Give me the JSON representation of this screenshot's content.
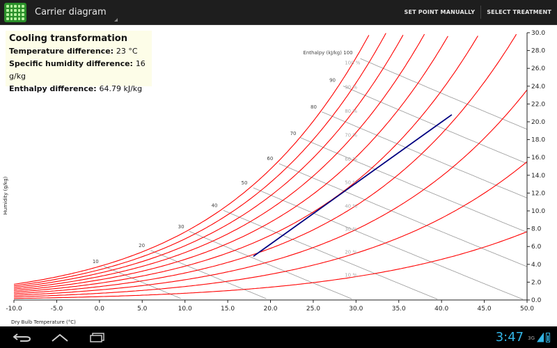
{
  "app": {
    "title": "Carrier diagram",
    "icon": "grid-app-icon"
  },
  "actions": [
    {
      "label": "SET POINT MANUALLY"
    },
    {
      "label": "SELECT TREATMENT"
    }
  ],
  "info": {
    "title": "Cooling transformation",
    "rows": [
      {
        "label": "Temperature difference:",
        "value": "23 °C"
      },
      {
        "label": "Specific humidity difference:",
        "value": "16 g/kg"
      },
      {
        "label": "Enthalpy difference:",
        "value": "64.79 kJ/kg"
      }
    ]
  },
  "chart_data": {
    "type": "line",
    "xlabel": "Dry Bulb Temperature (°C)",
    "ylabel": "Humidity (g/kg)",
    "x_ticks": [
      "-10.0",
      "-5.0",
      "0.0",
      "5.0",
      "10.0",
      "15.0",
      "20.0",
      "25.0",
      "30.0",
      "35.0",
      "40.0",
      "45.0",
      "50.0"
    ],
    "y_ticks": [
      "0.0",
      "2.0",
      "4.0",
      "6.0",
      "8.0",
      "10.0",
      "12.0",
      "14.0",
      "16.0",
      "18.0",
      "20.0",
      "22.0",
      "24.0",
      "26.0",
      "28.0",
      "30.0"
    ],
    "xlim": [
      -10,
      50
    ],
    "ylim": [
      0,
      30
    ],
    "rh_curves": [
      10,
      20,
      30,
      40,
      50,
      60,
      70,
      80,
      90,
      100
    ],
    "rh_labels": [
      "10 %",
      "20 %",
      "30 %",
      "40 %",
      "50 %",
      "60 %",
      "70 %",
      "80 %",
      "90 %",
      "100 %"
    ],
    "enthalpy_title": "Enthalpy (kJ/kg)",
    "enthalpy_values": [
      10,
      20,
      30,
      40,
      50,
      60,
      70,
      80,
      90,
      100
    ],
    "enthalpy_labels": [
      "10",
      "20",
      "30",
      "40",
      "50",
      "60",
      "70",
      "80",
      "90",
      "100"
    ],
    "series": [
      {
        "x": [
          18,
          41.2
        ],
        "y": [
          4.9,
          20.8
        ],
        "color": "#000080"
      }
    ],
    "colors": {
      "rh": "#ff0000",
      "grid": "#999999",
      "transformation": "#000080"
    }
  },
  "status": {
    "time": "3:47",
    "network": "3G"
  }
}
